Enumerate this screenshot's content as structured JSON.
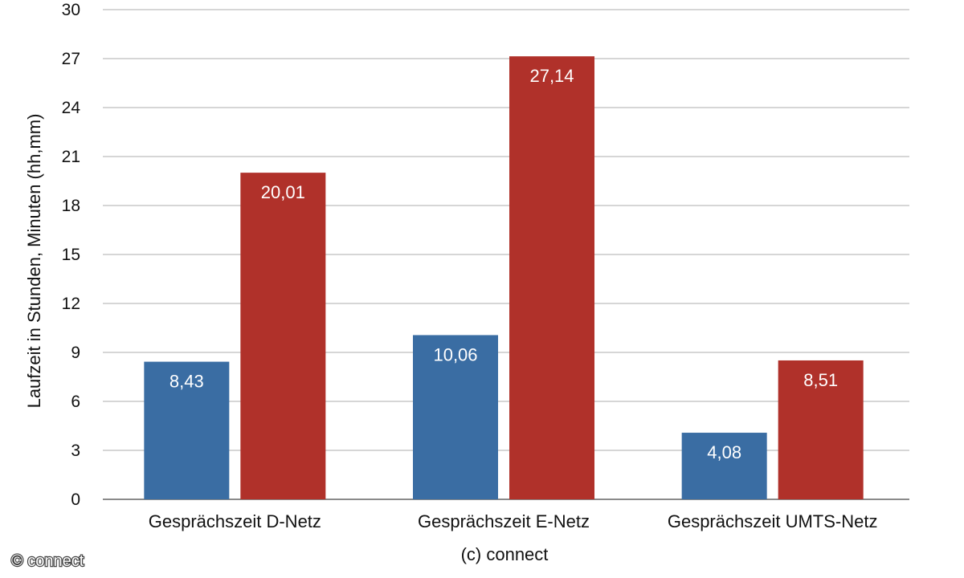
{
  "chart_data": {
    "type": "bar",
    "categories": [
      "Gesprächszeit D-Netz",
      "Gesprächszeit E-Netz",
      "Gesprächszeit UMTS-Netz"
    ],
    "series": [
      {
        "values": [
          8.43,
          10.06,
          4.08
        ],
        "labels": [
          "8,43",
          "10,06",
          "4,08"
        ],
        "color": "#3a6da3"
      },
      {
        "values": [
          20.01,
          27.14,
          8.51
        ],
        "labels": [
          "20,01",
          "27,14",
          "8,51"
        ],
        "color": "#b0312a"
      }
    ],
    "ylabel": "Laufzeit in Stunden, Minuten (hh,mm)",
    "xlabel": "(c) connect",
    "ylim": [
      0,
      30
    ],
    "yticks": [
      0,
      3,
      6,
      9,
      12,
      15,
      18,
      21,
      24,
      27,
      30
    ],
    "grid": true,
    "legend": "none"
  },
  "watermark": "© connect",
  "colors": {
    "grid": "#c8c8c8",
    "axis": "#8a8a8a"
  }
}
